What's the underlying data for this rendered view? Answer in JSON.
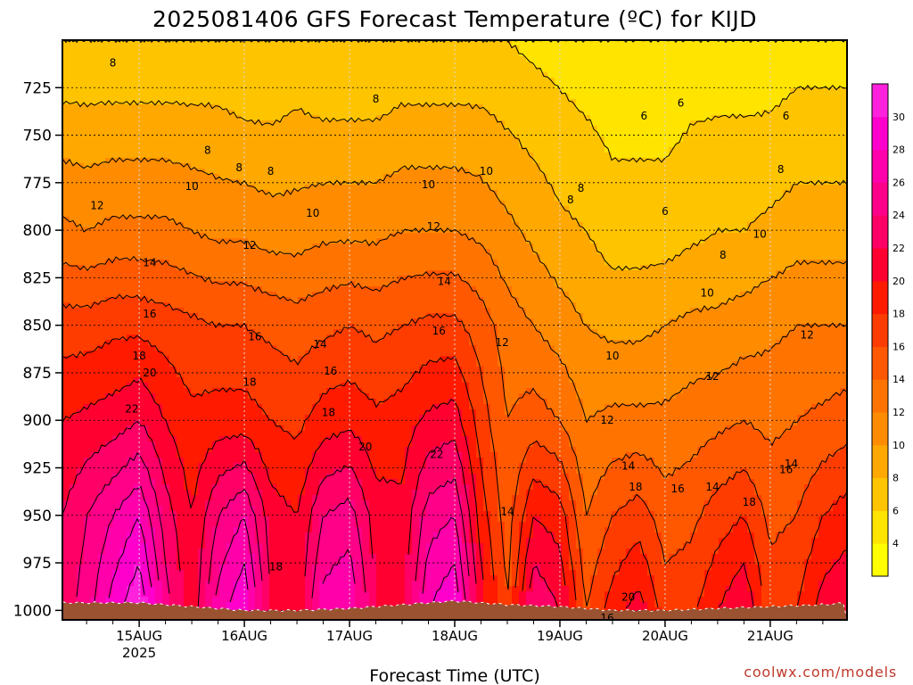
{
  "chart_data": {
    "type": "heatmap",
    "title": "2025081406 GFS Forecast Temperature (ºC) for KIJD",
    "xlabel": "Forecast Time (UTC)",
    "ylabel": "",
    "credit": "coolwx.com/models",
    "y_axis": {
      "unit": "hPa",
      "ticks": [
        "725",
        "750",
        "775",
        "800",
        "825",
        "850",
        "875",
        "900",
        "925",
        "950",
        "975",
        "1000"
      ],
      "range": [
        700,
        1005
      ]
    },
    "x_axis": {
      "ticks": [
        "15AUG",
        "16AUG",
        "17AUG",
        "18AUG",
        "19AUG",
        "20AUG",
        "21AUG"
      ],
      "year_label": "2025",
      "range_days_from_15AUG": [
        -0.73,
        6.73
      ]
    },
    "colorbar": {
      "ticks": [
        "4",
        "6",
        "8",
        "10",
        "12",
        "14",
        "16",
        "18",
        "20",
        "22",
        "24",
        "26",
        "28",
        "30"
      ],
      "range": [
        2,
        32
      ],
      "colors": [
        "#ffff00",
        "#ffe400",
        "#ffc400",
        "#ffa800",
        "#ff8c00",
        "#ff7400",
        "#ff5800",
        "#ff3c00",
        "#ff1a00",
        "#ff0030",
        "#ff0066",
        "#ff0088",
        "#ff00aa",
        "#ff00cc",
        "#ff22dd"
      ]
    },
    "profile_columns": [
      {
        "t": -0.73,
        "p725": 7.5,
        "p800": 12.5,
        "p850": 17,
        "p900": 20,
        "p950": 22,
        "p1000": 23
      },
      {
        "t": -0.5,
        "p725": 7.5,
        "p800": 12,
        "p850": 17,
        "p900": 20.5,
        "p950": 24,
        "p1000": 25
      },
      {
        "t": -0.25,
        "p725": 7.5,
        "p800": 12.5,
        "p850": 17.5,
        "p900": 21,
        "p950": 26,
        "p1000": 29
      },
      {
        "t": 0.0,
        "p725": 7.5,
        "p800": 12.5,
        "p850": 17.5,
        "p900": 22,
        "p950": 28,
        "p1000": 32
      },
      {
        "t": 0.25,
        "p725": 7.5,
        "p800": 12.5,
        "p850": 17,
        "p900": 20,
        "p950": 23,
        "p1000": 25
      },
      {
        "t": 0.5,
        "p725": 7.5,
        "p800": 12,
        "p850": 16.5,
        "p900": 18.5,
        "p950": 20,
        "p1000": 20.5
      },
      {
        "t": 0.75,
        "p725": 7.5,
        "p800": 11.5,
        "p850": 16,
        "p900": 19,
        "p950": 24,
        "p1000": 27
      },
      {
        "t": 1.0,
        "p725": 7,
        "p800": 11.5,
        "p850": 16,
        "p900": 19,
        "p950": 26,
        "p1000": 30
      },
      {
        "t": 1.25,
        "p725": 7,
        "p800": 11,
        "p850": 15.5,
        "p900": 18,
        "p950": 21,
        "p1000": 22
      },
      {
        "t": 1.5,
        "p725": 7.5,
        "p800": 11,
        "p850": 15,
        "p900": 17.5,
        "p950": 20,
        "p1000": 20.5
      },
      {
        "t": 1.75,
        "p725": 7,
        "p800": 11.5,
        "p850": 15.5,
        "p900": 19,
        "p950": 24,
        "p1000": 27
      },
      {
        "t": 2.0,
        "p725": 7,
        "p800": 11.5,
        "p850": 16,
        "p900": 19.5,
        "p950": 25,
        "p1000": 28
      },
      {
        "t": 2.25,
        "p725": 7,
        "p800": 11.5,
        "p850": 15.5,
        "p900": 18.5,
        "p950": 21,
        "p1000": 22
      },
      {
        "t": 2.5,
        "p725": 7.5,
        "p800": 12,
        "p850": 16,
        "p900": 19,
        "p950": 20.5,
        "p1000": 21
      },
      {
        "t": 2.75,
        "p725": 7.5,
        "p800": 12,
        "p850": 16.5,
        "p900": 20.5,
        "p950": 25,
        "p1000": 28
      },
      {
        "t": 3.0,
        "p725": 7.5,
        "p800": 12,
        "p850": 16.5,
        "p900": 21,
        "p950": 26,
        "p1000": 30
      },
      {
        "t": 3.25,
        "p725": 7.5,
        "p800": 11.5,
        "p850": 15,
        "p900": 17,
        "p950": 19,
        "p1000": 21
      },
      {
        "t": 3.5,
        "p725": 7,
        "p800": 10.5,
        "p850": 13,
        "p900": 14,
        "p950": 15,
        "p1000": 16
      },
      {
        "t": 3.75,
        "p725": 6.5,
        "p800": 9.5,
        "p850": 12,
        "p900": 15,
        "p950": 20,
        "p1000": 24
      },
      {
        "t": 4.0,
        "p725": 6,
        "p800": 8.5,
        "p850": 11,
        "p900": 14,
        "p950": 19,
        "p1000": 22
      },
      {
        "t": 4.25,
        "p725": 5.5,
        "p800": 8,
        "p850": 10,
        "p900": 12,
        "p950": 14,
        "p1000": 16
      },
      {
        "t": 4.5,
        "p725": 5,
        "p800": 7,
        "p850": 9.5,
        "p900": 12.5,
        "p950": 16,
        "p1000": 19
      },
      {
        "t": 4.75,
        "p725": 5,
        "p800": 7,
        "p850": 9.5,
        "p900": 12.5,
        "p950": 17,
        "p1000": 21
      },
      {
        "t": 5.0,
        "p725": 5,
        "p800": 7,
        "p850": 10,
        "p900": 12.5,
        "p950": 15,
        "p1000": 17
      },
      {
        "t": 5.25,
        "p725": 5.5,
        "p800": 7.5,
        "p850": 10.5,
        "p900": 13,
        "p950": 15.5,
        "p1000": 17.5
      },
      {
        "t": 5.5,
        "p725": 5.5,
        "p800": 8,
        "p850": 10.5,
        "p900": 13.5,
        "p950": 17,
        "p1000": 20
      },
      {
        "t": 5.75,
        "p725": 5.5,
        "p800": 8,
        "p850": 11,
        "p900": 14,
        "p950": 18,
        "p1000": 22
      },
      {
        "t": 6.0,
        "p725": 5.5,
        "p800": 8.5,
        "p850": 11.5,
        "p900": 13.5,
        "p950": 15.5,
        "p1000": 17
      },
      {
        "t": 6.25,
        "p725": 6,
        "p800": 9,
        "p850": 12,
        "p900": 14,
        "p950": 16,
        "p1000": 18
      },
      {
        "t": 6.5,
        "p725": 6,
        "p800": 9,
        "p850": 12,
        "p900": 14.5,
        "p950": 18,
        "p1000": 21
      },
      {
        "t": 6.73,
        "p725": 6,
        "p800": 9,
        "p850": 12,
        "p900": 15,
        "p950": 19,
        "p1000": 22
      }
    ],
    "surface_pressure": [
      {
        "t": -0.73,
        "p": 996
      },
      {
        "t": 0.0,
        "p": 996
      },
      {
        "t": 0.5,
        "p": 998
      },
      {
        "t": 1.0,
        "p": 1000
      },
      {
        "t": 1.5,
        "p": 1000
      },
      {
        "t": 2.0,
        "p": 999
      },
      {
        "t": 2.5,
        "p": 997
      },
      {
        "t": 3.0,
        "p": 995
      },
      {
        "t": 3.5,
        "p": 997
      },
      {
        "t": 4.0,
        "p": 998
      },
      {
        "t": 4.5,
        "p": 1000
      },
      {
        "t": 5.0,
        "p": 1000
      },
      {
        "t": 5.5,
        "p": 999
      },
      {
        "t": 6.0,
        "p": 998
      },
      {
        "t": 6.5,
        "p": 997
      },
      {
        "t": 6.73,
        "p": 996
      }
    ],
    "contour_labels": [
      {
        "text": "8",
        "t": -0.25,
        "p": 712
      },
      {
        "text": "8",
        "t": 0.65,
        "p": 758
      },
      {
        "text": "8",
        "t": 0.95,
        "p": 767
      },
      {
        "text": "8",
        "t": 1.25,
        "p": 769
      },
      {
        "text": "8",
        "t": 2.25,
        "p": 731
      },
      {
        "text": "8",
        "t": 4.1,
        "p": 784
      },
      {
        "text": "8",
        "t": 4.2,
        "p": 778
      },
      {
        "text": "8",
        "t": 6.1,
        "p": 768
      },
      {
        "text": "8",
        "t": 5.55,
        "p": 813
      },
      {
        "text": "6",
        "t": 4.8,
        "p": 740
      },
      {
        "text": "6",
        "t": 5.15,
        "p": 733
      },
      {
        "text": "6",
        "t": 6.15,
        "p": 740
      },
      {
        "text": "6",
        "t": 5.0,
        "p": 790
      },
      {
        "text": "10",
        "t": 0.5,
        "p": 777
      },
      {
        "text": "10",
        "t": 1.65,
        "p": 791
      },
      {
        "text": "10",
        "t": 2.75,
        "p": 776
      },
      {
        "text": "10",
        "t": 3.3,
        "p": 769
      },
      {
        "text": "10",
        "t": 5.9,
        "p": 802
      },
      {
        "text": "10",
        "t": 5.4,
        "p": 833
      },
      {
        "text": "10",
        "t": 4.5,
        "p": 866
      },
      {
        "text": "12",
        "t": -0.4,
        "p": 787
      },
      {
        "text": "12",
        "t": 1.05,
        "p": 808
      },
      {
        "text": "12",
        "t": 2.8,
        "p": 798
      },
      {
        "text": "12",
        "t": 3.45,
        "p": 859
      },
      {
        "text": "12",
        "t": 6.35,
        "p": 855
      },
      {
        "text": "12",
        "t": 5.45,
        "p": 877
      },
      {
        "text": "12",
        "t": 4.45,
        "p": 900
      },
      {
        "text": "14",
        "t": 0.1,
        "p": 817
      },
      {
        "text": "14",
        "t": 1.72,
        "p": 860
      },
      {
        "text": "14",
        "t": 2.9,
        "p": 827
      },
      {
        "text": "14",
        "t": 4.65,
        "p": 924
      },
      {
        "text": "14",
        "t": 5.45,
        "p": 935
      },
      {
        "text": "14",
        "t": 6.2,
        "p": 923
      },
      {
        "text": "14",
        "t": 3.5,
        "p": 948
      },
      {
        "text": "16",
        "t": 0.1,
        "p": 844
      },
      {
        "text": "16",
        "t": 1.1,
        "p": 856
      },
      {
        "text": "16",
        "t": 1.82,
        "p": 874
      },
      {
        "text": "16",
        "t": 2.85,
        "p": 853
      },
      {
        "text": "16",
        "t": 5.12,
        "p": 936
      },
      {
        "text": "16",
        "t": 6.15,
        "p": 926
      },
      {
        "text": "16",
        "t": 6.8,
        "p": 992
      },
      {
        "text": "16",
        "t": 4.45,
        "p": 1004
      },
      {
        "text": "18",
        "t": 0.0,
        "p": 866
      },
      {
        "text": "18",
        "t": 1.05,
        "p": 880
      },
      {
        "text": "18",
        "t": 1.8,
        "p": 896
      },
      {
        "text": "18",
        "t": 4.72,
        "p": 935
      },
      {
        "text": "18",
        "t": 5.8,
        "p": 943
      },
      {
        "text": "18",
        "t": 1.3,
        "p": 977
      },
      {
        "text": "20",
        "t": 0.1,
        "p": 875
      },
      {
        "text": "20",
        "t": 2.15,
        "p": 914
      },
      {
        "text": "20",
        "t": 4.65,
        "p": 993
      },
      {
        "text": "22",
        "t": -0.07,
        "p": 894
      },
      {
        "text": "22",
        "t": 2.83,
        "p": 918
      }
    ]
  }
}
